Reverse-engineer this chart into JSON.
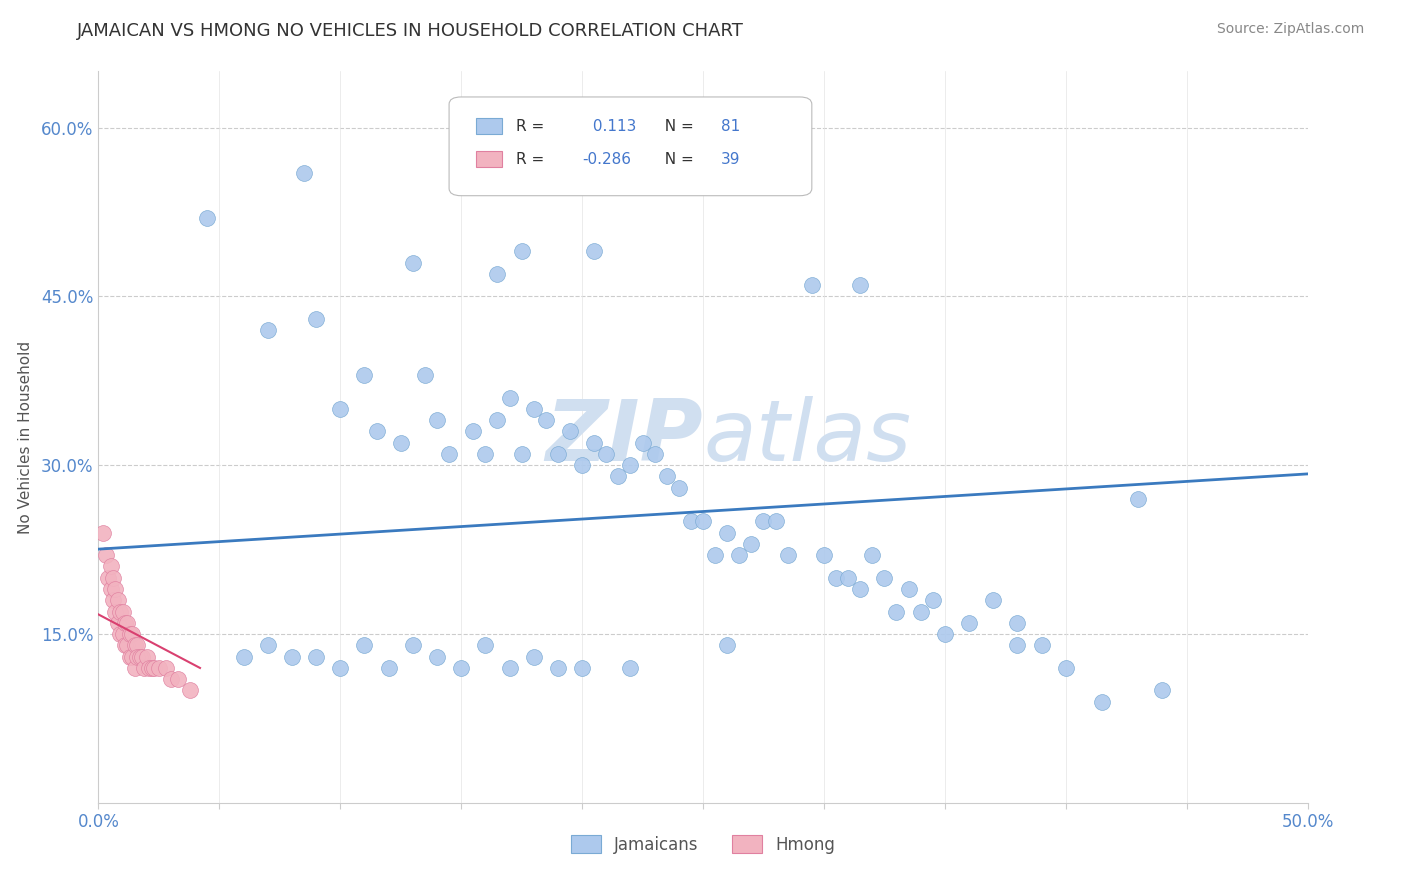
{
  "title": "JAMAICAN VS HMONG NO VEHICLES IN HOUSEHOLD CORRELATION CHART",
  "source": "Source: ZipAtlas.com",
  "ylabel": "No Vehicles in Household",
  "xlim": [
    0.0,
    0.5
  ],
  "ylim": [
    0.0,
    0.65
  ],
  "r_jamaican": 0.113,
  "n_jamaican": 81,
  "r_hmong": -0.286,
  "n_hmong": 39,
  "jamaican_color": "#adc9ed",
  "jamaican_edge": "#7aaad4",
  "hmong_color": "#f2b3c0",
  "hmong_edge": "#e080a0",
  "jamaican_line_color": "#3a7abf",
  "hmong_line_color": "#d94070",
  "watermark_color": "#d0dff0",
  "background_color": "#ffffff",
  "title_color": "#333333",
  "source_color": "#888888",
  "tick_color": "#5588cc",
  "grid_color": "#cccccc",
  "spine_color": "#cccccc",
  "ylabel_color": "#555555",
  "legend_text_color": "#333333",
  "legend_val_color": "#4477cc",
  "jamaican_x": [
    0.045,
    0.085,
    0.13,
    0.175,
    0.205,
    0.165,
    0.295,
    0.315,
    0.07,
    0.09,
    0.1,
    0.11,
    0.115,
    0.125,
    0.135,
    0.14,
    0.145,
    0.155,
    0.16,
    0.165,
    0.17,
    0.175,
    0.18,
    0.185,
    0.19,
    0.195,
    0.2,
    0.205,
    0.21,
    0.215,
    0.22,
    0.225,
    0.23,
    0.235,
    0.24,
    0.245,
    0.25,
    0.255,
    0.26,
    0.265,
    0.27,
    0.275,
    0.28,
    0.285,
    0.3,
    0.305,
    0.31,
    0.315,
    0.32,
    0.325,
    0.33,
    0.335,
    0.34,
    0.345,
    0.35,
    0.36,
    0.37,
    0.38,
    0.39,
    0.4,
    0.415,
    0.44,
    0.06,
    0.07,
    0.08,
    0.09,
    0.1,
    0.11,
    0.12,
    0.13,
    0.14,
    0.15,
    0.16,
    0.17,
    0.18,
    0.19,
    0.2,
    0.22,
    0.26,
    0.38,
    0.43
  ],
  "jamaican_y": [
    0.52,
    0.56,
    0.48,
    0.49,
    0.49,
    0.47,
    0.46,
    0.46,
    0.42,
    0.43,
    0.35,
    0.38,
    0.33,
    0.32,
    0.38,
    0.34,
    0.31,
    0.33,
    0.31,
    0.34,
    0.36,
    0.31,
    0.35,
    0.34,
    0.31,
    0.33,
    0.3,
    0.32,
    0.31,
    0.29,
    0.3,
    0.32,
    0.31,
    0.29,
    0.28,
    0.25,
    0.25,
    0.22,
    0.24,
    0.22,
    0.23,
    0.25,
    0.25,
    0.22,
    0.22,
    0.2,
    0.2,
    0.19,
    0.22,
    0.2,
    0.17,
    0.19,
    0.17,
    0.18,
    0.15,
    0.16,
    0.18,
    0.16,
    0.14,
    0.12,
    0.09,
    0.1,
    0.13,
    0.14,
    0.13,
    0.13,
    0.12,
    0.14,
    0.12,
    0.14,
    0.13,
    0.12,
    0.14,
    0.12,
    0.13,
    0.12,
    0.12,
    0.12,
    0.14,
    0.14,
    0.27
  ],
  "hmong_x": [
    0.002,
    0.003,
    0.004,
    0.005,
    0.005,
    0.006,
    0.006,
    0.007,
    0.007,
    0.008,
    0.008,
    0.009,
    0.009,
    0.01,
    0.01,
    0.011,
    0.011,
    0.012,
    0.012,
    0.013,
    0.013,
    0.014,
    0.014,
    0.015,
    0.015,
    0.016,
    0.016,
    0.017,
    0.018,
    0.019,
    0.02,
    0.021,
    0.022,
    0.023,
    0.025,
    0.028,
    0.03,
    0.033,
    0.038
  ],
  "hmong_y": [
    0.24,
    0.22,
    0.2,
    0.21,
    0.19,
    0.2,
    0.18,
    0.19,
    0.17,
    0.18,
    0.16,
    0.17,
    0.15,
    0.17,
    0.15,
    0.16,
    0.14,
    0.16,
    0.14,
    0.15,
    0.13,
    0.15,
    0.13,
    0.14,
    0.12,
    0.14,
    0.13,
    0.13,
    0.13,
    0.12,
    0.13,
    0.12,
    0.12,
    0.12,
    0.12,
    0.12,
    0.11,
    0.11,
    0.1
  ]
}
